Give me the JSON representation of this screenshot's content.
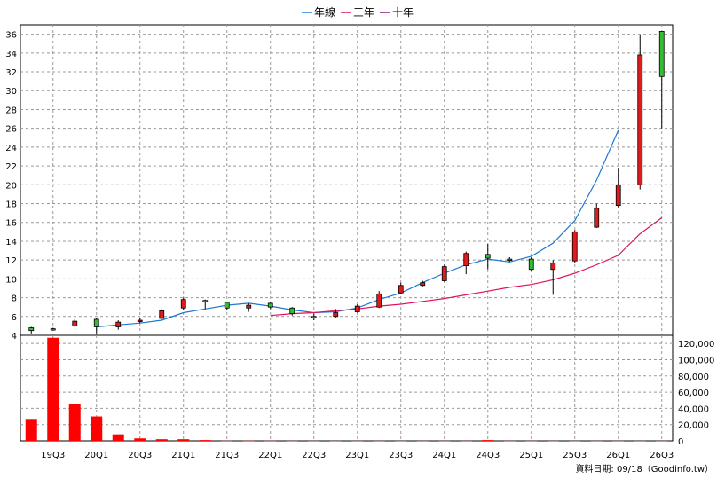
{
  "chart_data": {
    "type": "candlestick",
    "legend": [
      {
        "name": "年線",
        "color": "#1f77d4"
      },
      {
        "name": "三年",
        "color": "#e0115f"
      },
      {
        "name": "十年",
        "color": "#8b1a6b"
      }
    ],
    "legend_placement": "top-center",
    "grid": true,
    "price_axis": {
      "ylim": [
        4,
        37
      ],
      "ticks": [
        4,
        6,
        8,
        10,
        12,
        14,
        16,
        18,
        20,
        22,
        24,
        26,
        28,
        30,
        32,
        34,
        36
      ],
      "side": "left"
    },
    "volume_axis": {
      "ylim": [
        0,
        130000
      ],
      "ticks": [
        0,
        20000,
        40000,
        60000,
        80000,
        100000,
        120000
      ],
      "tick_labels": [
        "0",
        "20,000",
        "40,000",
        "60,000",
        "80,000",
        "100,000",
        "120,000"
      ],
      "side": "right"
    },
    "x_tick_labels": [
      "19Q3",
      "20Q1",
      "20Q3",
      "21Q1",
      "21Q3",
      "22Q1",
      "22Q3",
      "23Q1",
      "23Q3",
      "24Q1",
      "24Q3",
      "25Q1",
      "25Q3",
      "26Q1",
      "26Q3"
    ],
    "quarters": [
      "19Q2",
      "19Q3",
      "19Q4",
      "20Q1",
      "20Q2",
      "20Q3",
      "20Q4",
      "21Q1",
      "21Q2",
      "21Q3",
      "21Q4",
      "22Q1",
      "22Q2",
      "22Q3",
      "22Q4",
      "23Q1",
      "23Q2",
      "23Q3",
      "23Q4",
      "24Q1",
      "24Q2",
      "24Q3",
      "24Q4",
      "25Q1",
      "25Q2",
      "25Q3",
      "25Q4",
      "26Q1",
      "26Q2",
      "26Q3"
    ],
    "candles": [
      {
        "o": 4.8,
        "h": 4.9,
        "l": 4.2,
        "c": 4.5
      },
      {
        "o": 4.7,
        "h": 4.8,
        "l": 4.5,
        "c": 4.6
      },
      {
        "o": 5.0,
        "h": 5.7,
        "l": 4.9,
        "c": 5.5
      },
      {
        "o": 5.7,
        "h": 5.8,
        "l": 4.2,
        "c": 4.9
      },
      {
        "o": 4.9,
        "h": 5.6,
        "l": 4.6,
        "c": 5.4
      },
      {
        "o": 5.5,
        "h": 5.9,
        "l": 5.3,
        "c": 5.6
      },
      {
        "o": 5.8,
        "h": 6.8,
        "l": 5.6,
        "c": 6.6
      },
      {
        "o": 6.9,
        "h": 8.0,
        "l": 6.7,
        "c": 7.8
      },
      {
        "o": 7.7,
        "h": 7.8,
        "l": 6.8,
        "c": 7.6
      },
      {
        "o": 7.5,
        "h": 7.6,
        "l": 6.7,
        "c": 6.9
      },
      {
        "o": 6.9,
        "h": 7.4,
        "l": 6.5,
        "c": 7.2
      },
      {
        "o": 7.4,
        "h": 7.5,
        "l": 6.8,
        "c": 7.0
      },
      {
        "o": 6.9,
        "h": 7.0,
        "l": 6.1,
        "c": 6.3
      },
      {
        "o": 6.0,
        "h": 6.3,
        "l": 5.6,
        "c": 5.9
      },
      {
        "o": 6.0,
        "h": 6.8,
        "l": 5.8,
        "c": 6.4
      },
      {
        "o": 6.5,
        "h": 7.3,
        "l": 6.4,
        "c": 7.1
      },
      {
        "o": 7.0,
        "h": 8.7,
        "l": 6.9,
        "c": 8.4
      },
      {
        "o": 8.5,
        "h": 9.6,
        "l": 8.4,
        "c": 9.3
      },
      {
        "o": 9.3,
        "h": 9.8,
        "l": 9.2,
        "c": 9.6
      },
      {
        "o": 9.8,
        "h": 11.5,
        "l": 9.7,
        "c": 11.3
      },
      {
        "o": 11.4,
        "h": 12.9,
        "l": 10.5,
        "c": 12.7
      },
      {
        "o": 12.6,
        "h": 13.7,
        "l": 11.0,
        "c": 12.2
      },
      {
        "o": 12.1,
        "h": 12.3,
        "l": 11.8,
        "c": 12.0
      },
      {
        "o": 12.1,
        "h": 12.3,
        "l": 10.8,
        "c": 11.0
      },
      {
        "o": 11.0,
        "h": 12.0,
        "l": 8.3,
        "c": 11.7
      },
      {
        "o": 11.9,
        "h": 15.2,
        "l": 11.7,
        "c": 15.0
      },
      {
        "o": 15.5,
        "h": 18.0,
        "l": 15.4,
        "c": 17.5
      },
      {
        "o": 17.8,
        "h": 21.8,
        "l": 17.6,
        "c": 20.0
      },
      {
        "o": 20.0,
        "h": 35.9,
        "l": 19.5,
        "c": 33.8
      },
      {
        "o": 36.3,
        "h": 36.3,
        "l": 26.0,
        "c": 31.5
      }
    ],
    "series": [
      {
        "name": "年線",
        "start_index": 3,
        "values": [
          4.9,
          5.1,
          5.3,
          5.6,
          6.4,
          6.8,
          7.2,
          7.4,
          7.1,
          6.7,
          6.4,
          6.5,
          6.9,
          7.8,
          8.5,
          9.6,
          10.6,
          11.5,
          12.1,
          11.8,
          12.4,
          13.8,
          16.2,
          20.5,
          25.8
        ]
      },
      {
        "name": "三年",
        "start_index": 11,
        "values": [
          6.1,
          6.3,
          6.4,
          6.6,
          6.8,
          7.1,
          7.3,
          7.6,
          7.9,
          8.3,
          8.7,
          9.1,
          9.4,
          9.9,
          10.6,
          11.5,
          12.5,
          14.8,
          16.5
        ]
      },
      {
        "name": "十年",
        "start_index": 0,
        "values": []
      }
    ],
    "volume": [
      27000,
      127000,
      45000,
      30000,
      8000,
      3000,
      2000,
      2000,
      1000,
      200,
      200,
      200,
      100,
      100,
      100,
      100,
      100,
      100,
      100,
      100,
      100,
      1000,
      100,
      100,
      100,
      100,
      100,
      100,
      100,
      100
    ],
    "source_note": "資料日期: 09/18（Goodinfo.tw）"
  }
}
